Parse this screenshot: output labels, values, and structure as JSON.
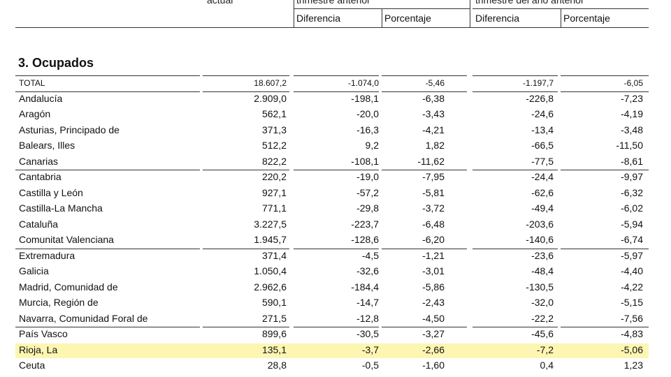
{
  "header": {
    "col1_top": "actual",
    "col2_top": "trimestre anterior",
    "col3_top": "trimestre del año anterior",
    "sub_diff_1": "Diferencia",
    "sub_pct_1": "Porcentaje",
    "sub_diff_2": "Diferencia",
    "sub_pct_2": "Porcentaje"
  },
  "section": {
    "title": "3. Ocupados"
  },
  "rows": [
    {
      "name": "TOTAL",
      "v1": "18.607,2",
      "v2": "-1.074,0",
      "v3": "-5,46",
      "v4": "-1.197,7",
      "v5": "-6,05"
    },
    {
      "name": "Andalucía",
      "v1": "2.909,0",
      "v2": "-198,1",
      "v3": "-6,38",
      "v4": "-226,8",
      "v5": "-7,23"
    },
    {
      "name": "Aragón",
      "v1": "562,1",
      "v2": "-20,0",
      "v3": "-3,43",
      "v4": "-24,6",
      "v5": "-4,19"
    },
    {
      "name": "Asturias, Principado de",
      "v1": "371,3",
      "v2": "-16,3",
      "v3": "-4,21",
      "v4": "-13,4",
      "v5": "-3,48"
    },
    {
      "name": "Balears, Illes",
      "v1": "512,2",
      "v2": "9,2",
      "v3": "1,82",
      "v4": "-66,5",
      "v5": "-11,50"
    },
    {
      "name": "Canarias",
      "v1": "822,2",
      "v2": "-108,1",
      "v3": "-11,62",
      "v4": "-77,5",
      "v5": "-8,61"
    },
    {
      "name": "Cantabria",
      "v1": "220,2",
      "v2": "-19,0",
      "v3": "-7,95",
      "v4": "-24,4",
      "v5": "-9,97"
    },
    {
      "name": "Castilla y León",
      "v1": "927,1",
      "v2": "-57,2",
      "v3": "-5,81",
      "v4": "-62,6",
      "v5": "-6,32"
    },
    {
      "name": "Castilla-La Mancha",
      "v1": "771,1",
      "v2": "-29,8",
      "v3": "-3,72",
      "v4": "-49,4",
      "v5": "-6,02"
    },
    {
      "name": "Cataluña",
      "v1": "3.227,5",
      "v2": "-223,7",
      "v3": "-6,48",
      "v4": "-203,6",
      "v5": "-5,94"
    },
    {
      "name": "Comunitat Valenciana",
      "v1": "1.945,7",
      "v2": "-128,6",
      "v3": "-6,20",
      "v4": "-140,6",
      "v5": "-6,74"
    },
    {
      "name": "Extremadura",
      "v1": "371,4",
      "v2": "-4,5",
      "v3": "-1,21",
      "v4": "-23,6",
      "v5": "-5,97"
    },
    {
      "name": "Galicia",
      "v1": "1.050,4",
      "v2": "-32,6",
      "v3": "-3,01",
      "v4": "-48,4",
      "v5": "-4,40"
    },
    {
      "name": "Madrid, Comunidad de",
      "v1": "2.962,6",
      "v2": "-184,4",
      "v3": "-5,86",
      "v4": "-130,5",
      "v5": "-4,22"
    },
    {
      "name": "Murcia, Región de",
      "v1": "590,1",
      "v2": "-14,7",
      "v3": "-2,43",
      "v4": "-32,0",
      "v5": "-5,15"
    },
    {
      "name": "Navarra, Comunidad Foral de",
      "v1": "271,5",
      "v2": "-12,8",
      "v3": "-4,50",
      "v4": "-22,2",
      "v5": "-7,56"
    },
    {
      "name": "País Vasco",
      "v1": "899,6",
      "v2": "-30,5",
      "v3": "-3,27",
      "v4": "-45,6",
      "v5": "-4,83"
    },
    {
      "name": "Rioja, La",
      "v1": "135,1",
      "v2": "-3,7",
      "v3": "-2,66",
      "v4": "-7,2",
      "v5": "-5,06"
    },
    {
      "name": "Ceuta",
      "v1": "28,8",
      "v2": "-0,5",
      "v3": "-1,60",
      "v4": "0,4",
      "v5": "1,23"
    }
  ],
  "highlight": {
    "row_name": "Rioja, La",
    "color": "#fdf6b3"
  },
  "colors": {
    "rule": "#333333",
    "text": "#111111"
  }
}
